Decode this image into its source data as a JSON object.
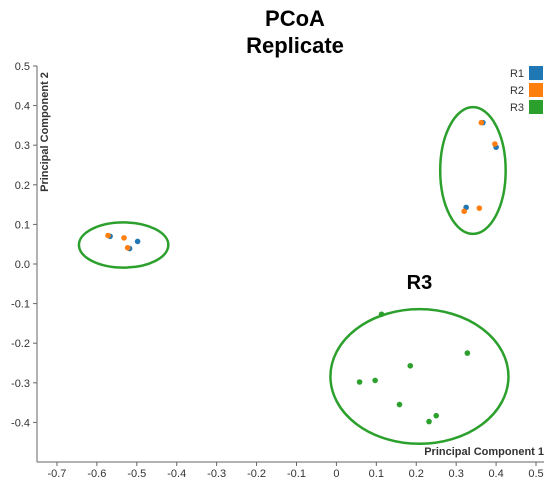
{
  "chart_data": {
    "type": "scatter",
    "title": [
      "PCoA",
      "Replicate"
    ],
    "xlabel": "Principal Component 1",
    "ylabel": "Principal Component 2",
    "xlim": [
      -0.75,
      0.52
    ],
    "ylim": [
      -0.5,
      0.5
    ],
    "xticks": [
      -0.7,
      -0.6,
      -0.5,
      -0.4,
      -0.3,
      -0.2,
      -0.1,
      0,
      0.1,
      0.2,
      0.3,
      0.4,
      0.5
    ],
    "xtick_labels": [
      "-0.7",
      "-0.6",
      "-0.5",
      "-0.4",
      "-0.3",
      "-0.2",
      "-0.1",
      "0",
      "0.1",
      "0.2",
      "0.3",
      "0.4",
      "0.5"
    ],
    "yticks": [
      0.5,
      0.4,
      0.3,
      0.2,
      0.1,
      0,
      -0.1,
      -0.2,
      -0.3,
      -0.4
    ],
    "ytick_labels": [
      "0.5",
      "0.4",
      "0.3",
      "0.2",
      "0.1",
      "0.0",
      "-0.1",
      "-0.2",
      "-0.3",
      "-0.4"
    ],
    "grid": false,
    "legend_position": "top-right",
    "series": [
      {
        "name": "R1",
        "color": "#1f77b4",
        "points": [
          {
            "x": -0.567,
            "y": 0.07
          },
          {
            "x": -0.498,
            "y": 0.057
          },
          {
            "x": -0.518,
            "y": 0.039
          },
          {
            "x": 0.325,
            "y": 0.143
          },
          {
            "x": 0.367,
            "y": 0.357
          },
          {
            "x": 0.4,
            "y": 0.295
          }
        ]
      },
      {
        "name": "R2",
        "color": "#ff7f0e",
        "points": [
          {
            "x": -0.572,
            "y": 0.072
          },
          {
            "x": -0.532,
            "y": 0.066
          },
          {
            "x": -0.523,
            "y": 0.041
          },
          {
            "x": 0.32,
            "y": 0.133
          },
          {
            "x": 0.358,
            "y": 0.141
          },
          {
            "x": 0.363,
            "y": 0.357
          },
          {
            "x": 0.397,
            "y": 0.303
          }
        ]
      },
      {
        "name": "R3",
        "color": "#2ca02c",
        "points": [
          {
            "x": 0.113,
            "y": -0.127
          },
          {
            "x": 0.328,
            "y": -0.225
          },
          {
            "x": 0.185,
            "y": -0.257
          },
          {
            "x": 0.058,
            "y": -0.298
          },
          {
            "x": 0.097,
            "y": -0.294
          },
          {
            "x": 0.158,
            "y": -0.355
          },
          {
            "x": 0.25,
            "y": -0.383
          },
          {
            "x": 0.232,
            "y": -0.398
          }
        ]
      }
    ],
    "ellipses": [
      {
        "cx": -0.533,
        "cy": 0.048,
        "rx": 0.112,
        "ry": 0.057,
        "color": "#2ca02c"
      },
      {
        "cx": 0.342,
        "cy": 0.236,
        "rx": 0.082,
        "ry": 0.16,
        "color": "#2ca02c"
      },
      {
        "cx": 0.208,
        "cy": -0.284,
        "rx": 0.223,
        "ry": 0.17,
        "color": "#2ca02c"
      }
    ],
    "annotations": [
      {
        "text": "R3",
        "x": 0.208,
        "y": -0.063
      }
    ]
  }
}
